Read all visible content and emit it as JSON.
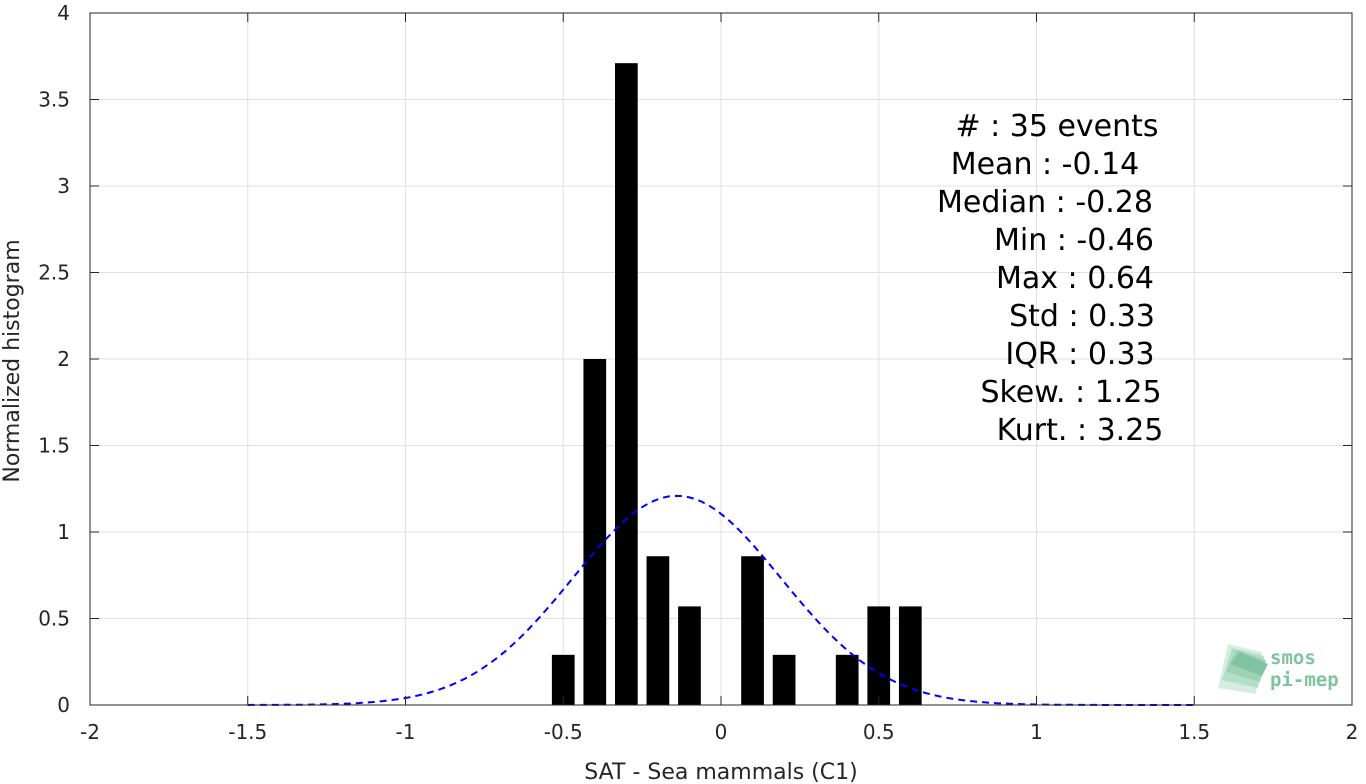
{
  "chart_data": {
    "type": "bar",
    "xlabel": "SAT - Sea mammals (C1)",
    "ylabel": "Normalized histogram",
    "xlim": [
      -2,
      2
    ],
    "ylim": [
      0,
      4
    ],
    "grid": true,
    "xticks": [
      "-2",
      "-1.5",
      "-1",
      "-0.5",
      "0",
      "0.5",
      "1",
      "1.5",
      "2"
    ],
    "yticks": [
      "0",
      "0.5",
      "1",
      "1.5",
      "2",
      "2.5",
      "3",
      "3.5",
      "4"
    ],
    "bar_color": "#000000",
    "bin_width": 0.1,
    "bars": [
      {
        "x": -0.5,
        "y": 0.29
      },
      {
        "x": -0.4,
        "y": 2.0
      },
      {
        "x": -0.3,
        "y": 3.71
      },
      {
        "x": -0.2,
        "y": 0.86
      },
      {
        "x": -0.1,
        "y": 0.57
      },
      {
        "x": 0.1,
        "y": 0.86
      },
      {
        "x": 0.2,
        "y": 0.29
      },
      {
        "x": 0.4,
        "y": 0.29
      },
      {
        "x": 0.5,
        "y": 0.57
      },
      {
        "x": 0.6,
        "y": 0.57
      }
    ],
    "fit_curve": {
      "style": "dashed",
      "color": "#0000ff",
      "distribution": "normal",
      "mean": -0.14,
      "std": 0.33,
      "x_range": [
        -1.5,
        1.5
      ]
    }
  },
  "stats": [
    "#  : 35 events",
    "Mean : -0.14",
    "Median : -0.28",
    "Min : -0.46",
    "Max : 0.64",
    "Std : 0.33",
    "IQR : 0.33",
    "Skew. : 1.25",
    "Kurt. : 3.25"
  ],
  "logo": {
    "line1": "smos",
    "line2": "pi-mep",
    "color": "#7ec3a0"
  }
}
